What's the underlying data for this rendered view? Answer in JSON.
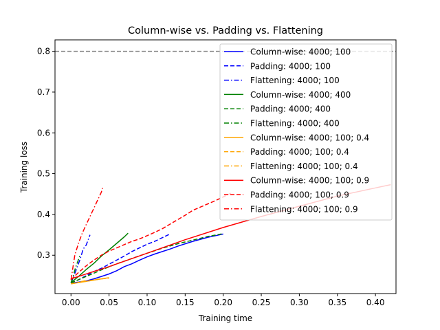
{
  "chart_data": {
    "type": "line",
    "title": "Column-wise vs. Padding vs. Flattening",
    "xlabel": "Training time",
    "ylabel": "Training loss",
    "xlim": [
      -0.021,
      0.427
    ],
    "ylim": [
      0.206,
      0.828
    ],
    "xticks": [
      "0.00",
      "0.05",
      "0.10",
      "0.15",
      "0.20",
      "0.25",
      "0.30",
      "0.35",
      "0.40"
    ],
    "xtick_values": [
      0,
      0.05,
      0.1,
      0.15,
      0.2,
      0.25,
      0.3,
      0.35,
      0.4
    ],
    "yticks": [
      "0.3",
      "0.4",
      "0.5",
      "0.6",
      "0.7",
      "0.8"
    ],
    "ytick_values": [
      0.3,
      0.4,
      0.5,
      0.6,
      0.7,
      0.8
    ],
    "grid": false,
    "legend_position": "top-right",
    "reference_line": {
      "y": 0.8,
      "color": "#808080",
      "style": "dashed"
    },
    "series": [
      {
        "name": "Column-wise: 4000; 100",
        "color": "#0000ff",
        "style": "solid",
        "x": [
          0.0,
          0.01,
          0.02,
          0.03,
          0.04,
          0.05,
          0.06,
          0.07,
          0.08,
          0.09,
          0.1,
          0.11,
          0.12,
          0.13,
          0.14,
          0.15,
          0.16,
          0.17,
          0.18,
          0.19,
          0.2
        ],
        "y": [
          0.232,
          0.234,
          0.237,
          0.242,
          0.248,
          0.254,
          0.262,
          0.272,
          0.279,
          0.288,
          0.296,
          0.303,
          0.309,
          0.315,
          0.322,
          0.328,
          0.334,
          0.339,
          0.344,
          0.348,
          0.352
        ]
      },
      {
        "name": "Padding: 4000; 100",
        "color": "#0000ff",
        "style": "dashed",
        "x": [
          0.0,
          0.01,
          0.02,
          0.03,
          0.04,
          0.05,
          0.06,
          0.07,
          0.08,
          0.09,
          0.1,
          0.11,
          0.12,
          0.13
        ],
        "y": [
          0.232,
          0.24,
          0.25,
          0.26,
          0.268,
          0.278,
          0.288,
          0.298,
          0.309,
          0.318,
          0.327,
          0.334,
          0.343,
          0.352
        ]
      },
      {
        "name": "Flattening: 4000; 100",
        "color": "#0000ff",
        "style": "dashdot",
        "x": [
          0.0,
          0.004,
          0.008,
          0.012,
          0.016,
          0.02,
          0.025
        ],
        "y": [
          0.232,
          0.25,
          0.27,
          0.29,
          0.315,
          0.325,
          0.35
        ]
      },
      {
        "name": "Column-wise: 4000; 400",
        "color": "#008000",
        "style": "solid",
        "x": [
          0.0,
          0.01,
          0.02,
          0.03,
          0.04,
          0.05,
          0.06,
          0.07,
          0.075
        ],
        "y": [
          0.233,
          0.248,
          0.265,
          0.28,
          0.298,
          0.313,
          0.329,
          0.345,
          0.354
        ]
      },
      {
        "name": "Padding: 4000; 400",
        "color": "#008000",
        "style": "dashed",
        "x": [
          0.0,
          0.02,
          0.04,
          0.06,
          0.08,
          0.1,
          0.12,
          0.14,
          0.16,
          0.18,
          0.2
        ],
        "y": [
          0.232,
          0.248,
          0.264,
          0.279,
          0.292,
          0.305,
          0.317,
          0.328,
          0.337,
          0.346,
          0.353
        ]
      },
      {
        "name": "Flattening: 4000; 400",
        "color": "#008000",
        "style": "dashdot",
        "x": [
          0.0,
          0.003,
          0.006,
          0.009,
          0.012
        ],
        "y": [
          0.233,
          0.25,
          0.27,
          0.285,
          0.3
        ]
      },
      {
        "name": "Column-wise: 4000; 100; 0.4",
        "color": "#ffa500",
        "style": "solid",
        "x": [
          0.0,
          0.01,
          0.02,
          0.03,
          0.04,
          0.05
        ],
        "y": [
          0.23,
          0.233,
          0.236,
          0.239,
          0.242,
          0.245
        ]
      },
      {
        "name": "Padding: 4000; 100; 0.4",
        "color": "#ffa500",
        "style": "dashed",
        "x": [
          0.0,
          0.01,
          0.02,
          0.03,
          0.04,
          0.05
        ],
        "y": [
          0.23,
          0.233,
          0.236,
          0.239,
          0.242,
          0.244
        ]
      },
      {
        "name": "Flattening: 4000; 100; 0.4",
        "color": "#ffa500",
        "style": "dashdot",
        "x": [
          0.0,
          0.005,
          0.01,
          0.015,
          0.02
        ],
        "y": [
          0.23,
          0.232,
          0.234,
          0.236,
          0.238
        ]
      },
      {
        "name": "Column-wise: 4000; 100; 0.9",
        "color": "#ff0000",
        "style": "solid",
        "x": [
          0.0,
          0.05,
          0.1,
          0.15,
          0.2,
          0.25,
          0.3,
          0.35,
          0.4,
          0.42
        ],
        "y": [
          0.242,
          0.272,
          0.305,
          0.338,
          0.368,
          0.395,
          0.42,
          0.445,
          0.465,
          0.473
        ]
      },
      {
        "name": "Padding: 4000; 100; 0.9",
        "color": "#ff0000",
        "style": "dashed",
        "x": [
          0.0,
          0.01,
          0.02,
          0.03,
          0.04,
          0.05,
          0.06,
          0.07,
          0.08,
          0.09,
          0.1,
          0.11,
          0.12,
          0.13,
          0.14,
          0.15,
          0.16,
          0.17,
          0.18,
          0.19,
          0.2,
          0.21
        ],
        "y": [
          0.24,
          0.258,
          0.274,
          0.288,
          0.3,
          0.31,
          0.318,
          0.326,
          0.334,
          0.34,
          0.348,
          0.356,
          0.365,
          0.376,
          0.387,
          0.398,
          0.41,
          0.418,
          0.426,
          0.434,
          0.443,
          0.452
        ]
      },
      {
        "name": "Flattening: 4000; 100; 0.9",
        "color": "#ff0000",
        "style": "dashdot",
        "x": [
          0.0,
          0.005,
          0.01,
          0.015,
          0.02,
          0.025,
          0.03,
          0.035,
          0.04,
          0.042
        ],
        "y": [
          0.24,
          0.3,
          0.33,
          0.355,
          0.375,
          0.395,
          0.415,
          0.435,
          0.455,
          0.47
        ]
      }
    ]
  }
}
